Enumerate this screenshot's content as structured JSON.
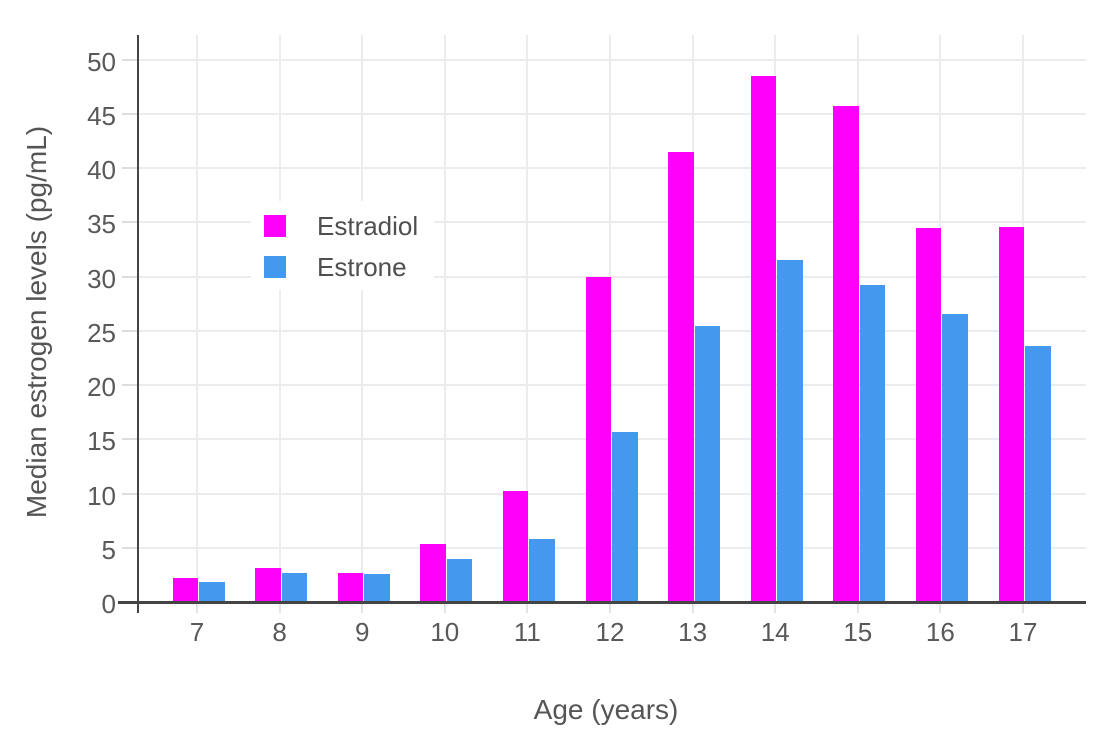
{
  "chart_data": {
    "type": "bar",
    "title": "",
    "xlabel": "Age (years)",
    "ylabel": "Median estrogen levels (pg/mL)",
    "categories": [
      "7",
      "8",
      "9",
      "10",
      "11",
      "12",
      "13",
      "14",
      "15",
      "16",
      "17"
    ],
    "series": [
      {
        "name": "Estradiol",
        "color": "#ff00fb",
        "values": [
          2.2,
          3.1,
          2.7,
          5.3,
          10.2,
          30.0,
          41.5,
          48.5,
          45.7,
          34.5,
          34.6
        ]
      },
      {
        "name": "Estrone",
        "color": "#4499ee",
        "values": [
          1.8,
          2.7,
          2.6,
          4.0,
          5.8,
          15.7,
          25.4,
          31.5,
          29.2,
          26.5,
          23.6
        ]
      }
    ],
    "ylim": [
      0,
      52.4
    ],
    "yticks": [
      0,
      5,
      10,
      15,
      20,
      25,
      30,
      35,
      40,
      45,
      50
    ],
    "grid": true,
    "legend_position": "inside-upper-left"
  },
  "colors": {
    "gridline": "#ececec",
    "axis_line": "#444444",
    "tick_label": "#595959",
    "axis_title": "#555555",
    "background": "#ffffff"
  }
}
